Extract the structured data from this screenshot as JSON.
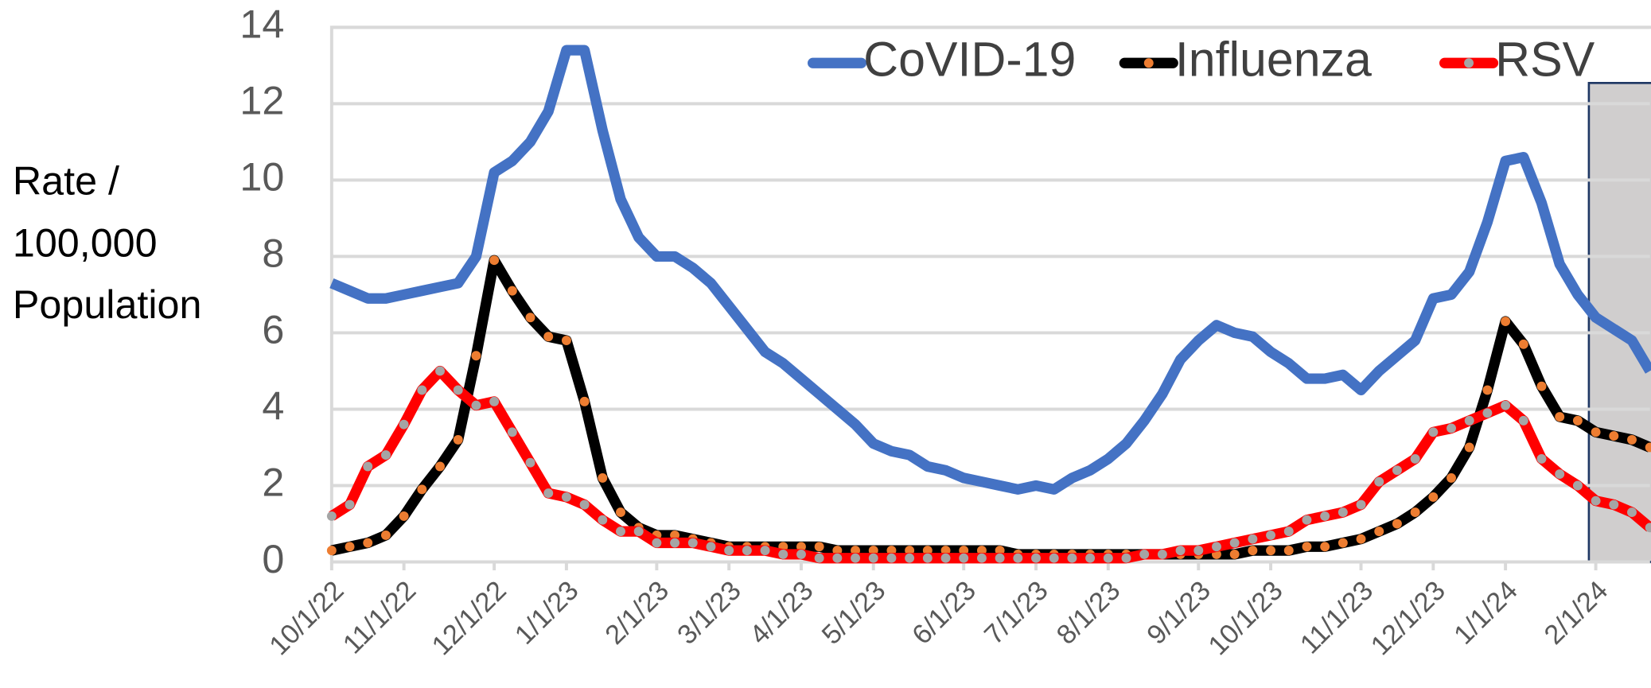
{
  "chart_data": {
    "type": "line",
    "ylabel": [
      "Rate /",
      "100,000",
      "Population"
    ],
    "categories": [
      "10/1/22",
      null,
      null,
      null,
      "11/1/22",
      null,
      null,
      null,
      null,
      "12/1/22",
      null,
      null,
      null,
      "1/1/23",
      null,
      null,
      null,
      null,
      "2/1/23",
      null,
      null,
      null,
      "3/1/23",
      null,
      null,
      null,
      "4/1/23",
      null,
      null,
      null,
      "5/1/23",
      null,
      null,
      null,
      null,
      "6/1/23",
      null,
      null,
      null,
      "7/1/23",
      null,
      null,
      null,
      "8/1/23",
      null,
      null,
      null,
      null,
      "9/1/23",
      null,
      null,
      null,
      "10/1/23",
      null,
      null,
      null,
      null,
      "11/1/23",
      null,
      null,
      null,
      "12/1/23",
      null,
      null,
      null,
      "1/1/24",
      null,
      null,
      null,
      null,
      "2/1/24",
      null,
      null,
      null
    ],
    "series": [
      {
        "name": "CoVID-19",
        "color": "#4472c4",
        "values": [
          7.3,
          7.1,
          6.9,
          6.9,
          7.0,
          7.1,
          7.2,
          7.3,
          8.0,
          10.2,
          10.5,
          11.0,
          11.8,
          13.4,
          13.4,
          11.3,
          9.5,
          8.5,
          8.0,
          8.0,
          7.7,
          7.3,
          6.7,
          6.1,
          5.5,
          5.2,
          4.8,
          4.4,
          4.0,
          3.6,
          3.1,
          2.9,
          2.8,
          2.5,
          2.4,
          2.2,
          2.1,
          2.0,
          1.9,
          2.0,
          1.9,
          2.2,
          2.4,
          2.7,
          3.1,
          3.7,
          4.4,
          5.3,
          5.8,
          6.2,
          6.0,
          5.9,
          5.5,
          5.2,
          4.8,
          4.8,
          4.9,
          4.5,
          5.0,
          5.4,
          5.8,
          6.9,
          7.0,
          7.6,
          8.9,
          10.5,
          10.6,
          9.4,
          7.8,
          7.0,
          6.4,
          6.1,
          5.8,
          5.0
        ]
      },
      {
        "name": "Influenza",
        "color": "#000000",
        "marker_color": "#ed7d31",
        "values": [
          0.3,
          0.4,
          0.5,
          0.7,
          1.2,
          1.9,
          2.5,
          3.2,
          5.4,
          7.9,
          7.1,
          6.4,
          5.9,
          5.8,
          4.2,
          2.2,
          1.3,
          0.9,
          0.7,
          0.7,
          0.6,
          0.5,
          0.4,
          0.4,
          0.4,
          0.4,
          0.4,
          0.4,
          0.3,
          0.3,
          0.3,
          0.3,
          0.3,
          0.3,
          0.3,
          0.3,
          0.3,
          0.3,
          0.2,
          0.2,
          0.2,
          0.2,
          0.2,
          0.2,
          0.2,
          0.2,
          0.2,
          0.2,
          0.2,
          0.2,
          0.2,
          0.3,
          0.3,
          0.3,
          0.4,
          0.4,
          0.5,
          0.6,
          0.8,
          1.0,
          1.3,
          1.7,
          2.2,
          3.0,
          4.5,
          6.3,
          5.7,
          4.6,
          3.8,
          3.7,
          3.4,
          3.3,
          3.2,
          3.0
        ]
      },
      {
        "name": "RSV",
        "color": "#ff0000",
        "marker_color": "#a5a5a5",
        "values": [
          1.2,
          1.5,
          2.5,
          2.8,
          3.6,
          4.5,
          5.0,
          4.5,
          4.1,
          4.2,
          3.4,
          2.6,
          1.8,
          1.7,
          1.5,
          1.1,
          0.8,
          0.8,
          0.5,
          0.5,
          0.5,
          0.4,
          0.3,
          0.3,
          0.3,
          0.2,
          0.2,
          0.1,
          0.1,
          0.1,
          0.1,
          0.1,
          0.1,
          0.1,
          0.1,
          0.1,
          0.1,
          0.1,
          0.1,
          0.1,
          0.1,
          0.1,
          0.1,
          0.1,
          0.1,
          0.2,
          0.2,
          0.3,
          0.3,
          0.4,
          0.5,
          0.6,
          0.7,
          0.8,
          1.1,
          1.2,
          1.3,
          1.5,
          2.1,
          2.4,
          2.7,
          3.4,
          3.5,
          3.7,
          3.9,
          4.1,
          3.7,
          2.7,
          2.3,
          2.0,
          1.6,
          1.5,
          1.3,
          0.9
        ]
      }
    ],
    "ylim": [
      0,
      14
    ],
    "yticks": [
      0,
      2,
      4,
      6,
      8,
      10,
      12,
      14
    ],
    "grid": true,
    "legend": "top-right"
  }
}
